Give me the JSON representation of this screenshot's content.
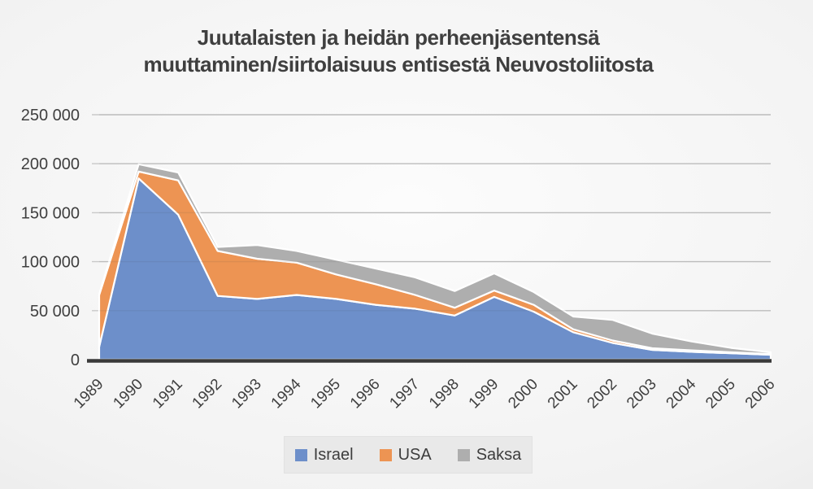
{
  "title_lines": [
    "Juutalaisten ja heidän perheenjäsentensä",
    "muuttaminen/siirtolaisuus entisestä Neuvostoliitosta"
  ],
  "colors": {
    "background_center": "#fcfcfc",
    "background_edge": "#d9d9d9",
    "grid": "#c9c9c9",
    "axis": "#3a3a3a",
    "text": "#3f3f3f",
    "area_outline": "#ffffff",
    "legend_background": "#e9e9e9"
  },
  "chart_data": {
    "type": "area",
    "stacked": true,
    "title": "Juutalaisten ja heidän perheenjäsentensä muuttaminen/siirtolaisuus entisestä Neuvostoliitosta",
    "xlabel": "",
    "ylabel": "",
    "ylim": [
      0,
      250000
    ],
    "ytick_step": 50000,
    "ytick_labels": [
      "0",
      "50 000",
      "100 000",
      "150 000",
      "200 000",
      "250 000"
    ],
    "grid": true,
    "legend_position": "bottom",
    "categories": [
      "1989",
      "1990",
      "1991",
      "1992",
      "1993",
      "1994",
      "1995",
      "1996",
      "1997",
      "1998",
      "1999",
      "2000",
      "2001",
      "2002",
      "2003",
      "2004",
      "2005",
      "2006"
    ],
    "series": [
      {
        "name": "Israel",
        "color": "#6d8fca",
        "values": [
          13000,
          185000,
          148000,
          65000,
          62000,
          66000,
          62000,
          56000,
          52000,
          45000,
          64000,
          49000,
          28000,
          17000,
          10000,
          8000,
          6500,
          5000
        ]
      },
      {
        "name": "USA",
        "color": "#ed9453",
        "values": [
          53000,
          7000,
          35000,
          46000,
          41000,
          33000,
          25000,
          21000,
          14000,
          8000,
          6500,
          7000,
          3000,
          2500,
          1600,
          1500,
          1000,
          700
        ]
      },
      {
        "name": "Saksa",
        "color": "#aeaeae",
        "values": [
          1000,
          7500,
          8000,
          4000,
          14000,
          12000,
          15000,
          16000,
          18000,
          17000,
          17500,
          13000,
          13000,
          21000,
          15000,
          9000,
          4500,
          1800
        ]
      }
    ]
  }
}
